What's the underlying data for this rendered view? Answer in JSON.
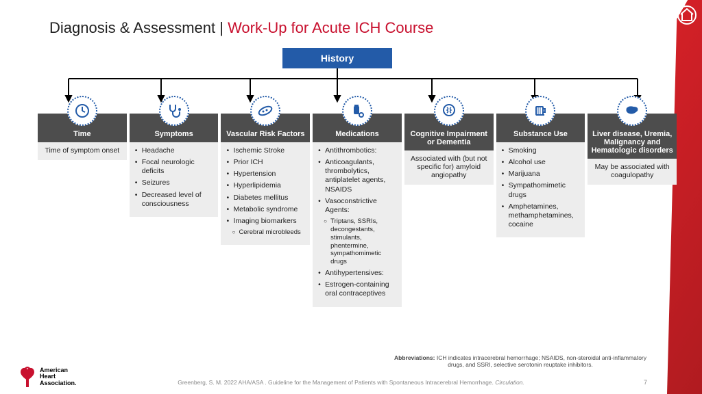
{
  "colors": {
    "brand_red": "#c8102e",
    "header_blue": "#235ba8",
    "col_header_bg": "#4d4d4d",
    "col_body_bg": "#ededed",
    "connector": "#000000"
  },
  "title": {
    "prefix": "Diagnosis & Assessment ",
    "divider": "| ",
    "red_part": "Work-Up for Acute ICH Course"
  },
  "root_label": "History",
  "columns": [
    {
      "header": "Time",
      "body_type": "text",
      "text": "Time of symptom onset",
      "icon": "clock"
    },
    {
      "header": "Symptoms",
      "body_type": "list",
      "icon": "stethoscope",
      "items": [
        "Headache",
        "Focal neurologic deficits",
        "Seizures",
        "Decreased level of consciousness"
      ]
    },
    {
      "header": "Vascular Risk Factors",
      "body_type": "list",
      "icon": "vessel",
      "items": [
        "Ischemic Stroke",
        "Prior ICH",
        "Hypertension",
        "Hyperlipidemia",
        "Diabetes mellitus",
        "Metabolic syndrome",
        "Imaging biomarkers"
      ],
      "subitems_after": 6,
      "subitems": [
        "Cerebral microbleeds"
      ]
    },
    {
      "header": "Medications",
      "body_type": "list",
      "icon": "pills",
      "items": [
        "Antithrombotics:",
        "Anticoagulants, thrombolytics, antiplatelet agents, NSAIDS",
        "Vasoconstrictive Agents:"
      ],
      "subitems_after": 2,
      "subitems": [
        "Triptans, SSRIs, decongestants, stimulants, phentermine, sympathomimetic drugs"
      ],
      "items_after_sub": [
        "Antihypertensives:",
        "Estrogen-containing oral contraceptives"
      ]
    },
    {
      "header": "Cognitive Impairment or Dementia",
      "body_type": "text",
      "icon": "brain",
      "text": "Associated with (but not specific for) amyloid angiopathy"
    },
    {
      "header": "Substance Use",
      "body_type": "list",
      "icon": "mug",
      "items": [
        "Smoking",
        "Alcohol use",
        "Marijuana",
        "Sympathomimetic drugs",
        "Amphetamines, methamphetamines, cocaine"
      ]
    },
    {
      "header": "Liver disease, Uremia, Malignancy and Hematologic disorders",
      "body_type": "text",
      "icon": "liver",
      "text": "May be associated with coagulopathy"
    }
  ],
  "abbreviations": "Abbreviations: ICH indicates intracerebral hemorrhage; NSAIDS, non-steroidal anti-inflammatory drugs, and SSRI, selective serotonin reuptake inhibitors.",
  "citation": {
    "text": "Greenberg, S. M. 2022 AHA/ASA . Guideline for the Management of Patients with Spontaneous Intracerebral Hemorrhage. ",
    "ital": "Circulation."
  },
  "page_number": "7",
  "logo": {
    "line1": "American",
    "line2": "Heart",
    "line3": "Association."
  }
}
